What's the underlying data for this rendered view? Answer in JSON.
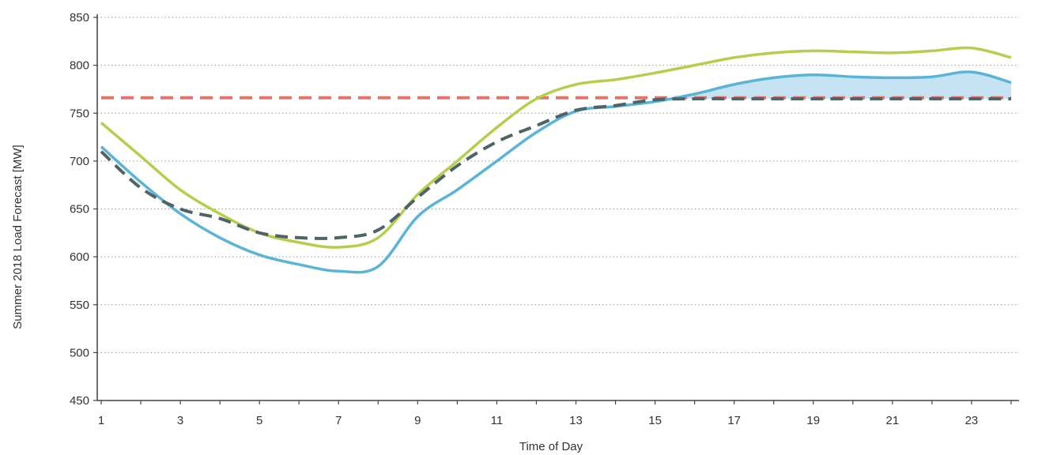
{
  "chart_data": {
    "type": "line",
    "title": "",
    "xlabel": "Time of Day",
    "ylabel": "Summer 2018 Load Forecast [MW]",
    "xlim": [
      0.9,
      24.2
    ],
    "ylim": [
      450,
      850
    ],
    "yticks": [
      450,
      500,
      550,
      600,
      650,
      700,
      750,
      800,
      850
    ],
    "xticks": [
      1,
      3,
      5,
      7,
      9,
      11,
      13,
      15,
      17,
      19,
      21,
      23
    ],
    "grid": true,
    "legend": "none",
    "x": [
      1,
      2,
      3,
      4,
      5,
      6,
      7,
      8,
      9,
      10,
      11,
      12,
      13,
      14,
      15,
      16,
      17,
      18,
      19,
      20,
      21,
      22,
      23,
      24
    ],
    "series": [
      {
        "style": "solid",
        "color": "#b5cf4c",
        "values": [
          740,
          705,
          670,
          645,
          625,
          615,
          610,
          620,
          665,
          700,
          735,
          765,
          780,
          785,
          792,
          800,
          808,
          813,
          815,
          814,
          813,
          815,
          818,
          808
        ]
      },
      {
        "style": "solid",
        "color": "#5ab4d8",
        "values": [
          715,
          678,
          645,
          620,
          602,
          592,
          585,
          590,
          642,
          670,
          700,
          730,
          752,
          757,
          762,
          770,
          780,
          787,
          790,
          788,
          787,
          788,
          793,
          782
        ]
      },
      {
        "style": "dashed",
        "color": "#4e6466",
        "values": [
          710,
          672,
          650,
          640,
          625,
          620,
          620,
          628,
          662,
          695,
          720,
          737,
          753,
          758,
          764,
          765,
          765,
          765,
          765,
          765,
          765,
          765,
          765,
          765
        ]
      },
      {
        "style": "dashed",
        "color": "#e0756b",
        "values": [
          766,
          766,
          766,
          766,
          766,
          766,
          766,
          766,
          766,
          766,
          766,
          766,
          766,
          766,
          766,
          766,
          766,
          766,
          766,
          766,
          766,
          766,
          766,
          766
        ]
      }
    ],
    "shaded_region": {
      "color": "#bfe0f2",
      "upper_series": 1,
      "lower_value": 765,
      "x_start": 15,
      "x_end": 24
    }
  }
}
